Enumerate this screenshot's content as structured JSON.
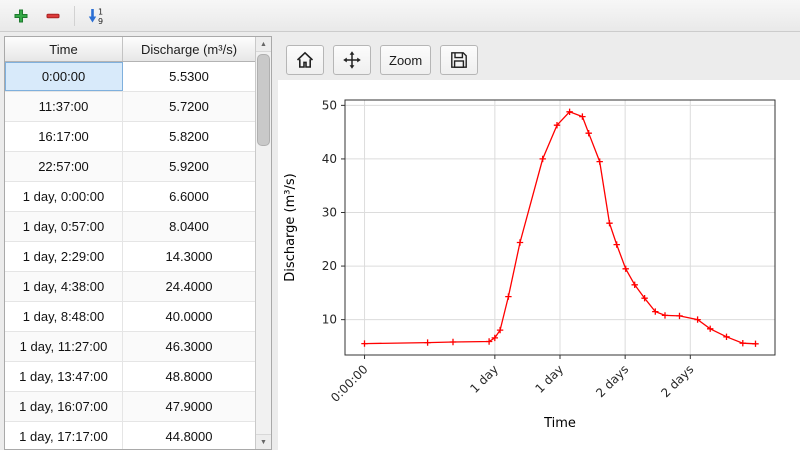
{
  "colors": {
    "window_bg": "#ececec",
    "selected_cell_bg": "#d8eafa",
    "selected_cell_border": "#7fb0dd",
    "chart_line": "#ff0000",
    "add_icon_green": "#35a847",
    "remove_icon_red": "#dd3b3b",
    "sort_icon_blue": "#2b6fd4"
  },
  "main_toolbar": {
    "buttons": [
      {
        "name": "add-row",
        "icon": "plus-icon"
      },
      {
        "name": "delete-row",
        "icon": "minus-icon"
      },
      {
        "name": "sort-rows",
        "icon": "sort-ascending-icon"
      }
    ]
  },
  "table": {
    "columns": [
      "Time",
      "Discharge (m³/s)"
    ],
    "selected_row": 0,
    "rows": [
      [
        "0:00:00",
        "5.5300"
      ],
      [
        "11:37:00",
        "5.7200"
      ],
      [
        "16:17:00",
        "5.8200"
      ],
      [
        "22:57:00",
        "5.9200"
      ],
      [
        "1 day, 0:00:00",
        "6.6000"
      ],
      [
        "1 day, 0:57:00",
        "8.0400"
      ],
      [
        "1 day, 2:29:00",
        "14.3000"
      ],
      [
        "1 day, 4:38:00",
        "24.4000"
      ],
      [
        "1 day, 8:48:00",
        "40.0000"
      ],
      [
        "1 day, 11:27:00",
        "46.3000"
      ],
      [
        "1 day, 13:47:00",
        "48.8000"
      ],
      [
        "1 day, 16:07:00",
        "47.9000"
      ],
      [
        "1 day, 17:17:00",
        "44.8000"
      ]
    ]
  },
  "chart_toolbar": {
    "zoom_label": "Zoom",
    "buttons": [
      "home-icon",
      "pan-icon",
      "zoom",
      "save-icon"
    ]
  },
  "chart_data": {
    "type": "line",
    "title": "",
    "xlabel": "Time",
    "ylabel": "Discharge (m³/s)",
    "x_unit": "days",
    "x_days": [
      0,
      0.484,
      0.679,
      0.956,
      1.0,
      1.04,
      1.104,
      1.193,
      1.367,
      1.477,
      1.574,
      1.672,
      1.72,
      1.805,
      1.88,
      1.935,
      2.004,
      2.073,
      2.149,
      2.231,
      2.306,
      2.417,
      2.556,
      2.653,
      2.778,
      2.903,
      3.0
    ],
    "values": [
      5.53,
      5.72,
      5.82,
      5.92,
      6.6,
      8.04,
      14.3,
      24.4,
      40.0,
      46.3,
      48.8,
      47.9,
      44.8,
      39.5,
      28.0,
      24.0,
      19.5,
      16.5,
      14.0,
      11.5,
      10.8,
      10.7,
      10.0,
      8.3,
      6.8,
      5.6,
      5.5
    ],
    "x_ticks": [
      {
        "pos": 0.0,
        "label": "0:00:00"
      },
      {
        "pos": 1.0,
        "label": "1 day"
      },
      {
        "pos": 1.5,
        "label": "1 day"
      },
      {
        "pos": 2.0,
        "label": "2 days"
      },
      {
        "pos": 2.5,
        "label": "2 days"
      }
    ],
    "y_ticks": [
      10,
      20,
      30,
      40,
      50
    ],
    "xlim": [
      -0.15,
      3.15
    ],
    "ylim": [
      3.4,
      51
    ],
    "grid": true,
    "legend_position": "none",
    "line_color": "#ff0000",
    "marker": "+"
  }
}
